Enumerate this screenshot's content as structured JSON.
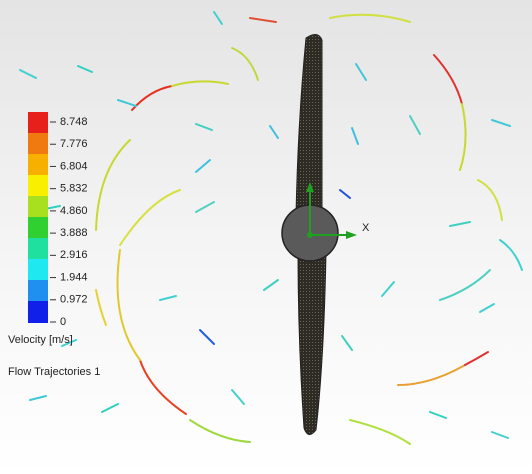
{
  "legend": {
    "ticks": [
      "8.748",
      "7.776",
      "6.804",
      "5.832",
      "4.860",
      "3.888",
      "2.916",
      "1.944",
      "0.972",
      "0"
    ],
    "quantity": "Velocity [m/s]"
  },
  "plot_name": "Flow Trajectories 1",
  "axis_label": "X"
}
